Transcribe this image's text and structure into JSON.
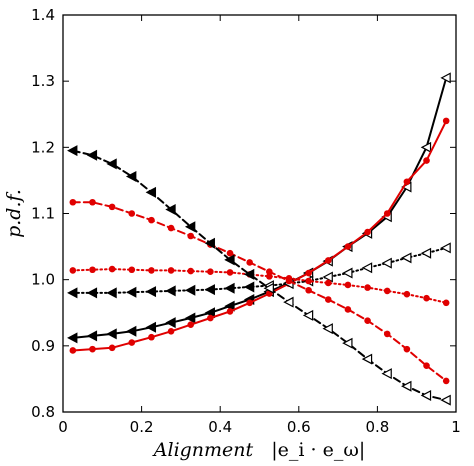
{
  "chart_data": {
    "type": "line",
    "title": "",
    "xlabel": "Alignment",
    "xlabel_formula": "|e_i · e_ω|",
    "ylabel": "p.d.f.",
    "xlim": [
      0,
      1
    ],
    "ylim": [
      0.8,
      1.4
    ],
    "xticks": [
      0,
      0.2,
      0.4,
      0.6,
      0.8,
      1
    ],
    "xtick_labels": [
      "0",
      "0.2",
      "0.4",
      "0.6",
      "0.8",
      "1"
    ],
    "yticks": [
      0.8,
      0.9,
      1.0,
      1.1,
      1.2,
      1.3,
      1.4
    ],
    "ytick_labels": [
      "0.8",
      "0.9",
      "1.0",
      "1.1",
      "1.2",
      "1.3",
      "1.4"
    ],
    "grid": false,
    "legend": "none",
    "series": [
      {
        "color": "#000000",
        "line": "solid",
        "marker": "triangle-left",
        "filled": true,
        "x": [
          0.025,
          0.075,
          0.125,
          0.175,
          0.225,
          0.275,
          0.325,
          0.375,
          0.425,
          0.475,
          0.525,
          0.575,
          0.625,
          0.675,
          0.725,
          0.775,
          0.825,
          0.875,
          0.925,
          0.975
        ],
        "y": [
          0.912,
          0.915,
          0.918,
          0.922,
          0.928,
          0.935,
          0.942,
          0.95,
          0.96,
          0.97,
          0.982,
          0.995,
          1.01,
          1.028,
          1.05,
          1.07,
          1.095,
          1.14,
          1.2,
          1.305
        ]
      },
      {
        "color": "#e00000",
        "line": "solid",
        "marker": "circle",
        "filled": true,
        "x": [
          0.025,
          0.075,
          0.125,
          0.175,
          0.225,
          0.275,
          0.325,
          0.375,
          0.425,
          0.475,
          0.525,
          0.575,
          0.625,
          0.675,
          0.725,
          0.775,
          0.825,
          0.875,
          0.925,
          0.975
        ],
        "y": [
          0.893,
          0.895,
          0.897,
          0.905,
          0.913,
          0.922,
          0.932,
          0.942,
          0.952,
          0.965,
          0.979,
          0.994,
          1.01,
          1.029,
          1.05,
          1.072,
          1.1,
          1.148,
          1.18,
          1.24
        ]
      },
      {
        "color": "#000000",
        "line": "dotted",
        "marker": "triangle-left",
        "filled": true,
        "x": [
          0.025,
          0.075,
          0.125,
          0.175,
          0.225,
          0.275,
          0.325,
          0.375,
          0.425,
          0.475,
          0.525,
          0.575,
          0.625,
          0.675,
          0.725,
          0.775,
          0.825,
          0.875,
          0.925,
          0.975
        ],
        "y": [
          0.98,
          0.98,
          0.98,
          0.981,
          0.982,
          0.983,
          0.984,
          0.985,
          0.987,
          0.989,
          0.991,
          0.994,
          0.998,
          1.004,
          1.01,
          1.018,
          1.025,
          1.033,
          1.04,
          1.048
        ]
      },
      {
        "color": "#e00000",
        "line": "dotted",
        "marker": "circle",
        "filled": true,
        "x": [
          0.025,
          0.075,
          0.125,
          0.175,
          0.225,
          0.275,
          0.325,
          0.375,
          0.425,
          0.475,
          0.525,
          0.575,
          0.625,
          0.675,
          0.725,
          0.775,
          0.825,
          0.875,
          0.925,
          0.975
        ],
        "y": [
          1.014,
          1.015,
          1.016,
          1.015,
          1.014,
          1.014,
          1.013,
          1.012,
          1.011,
          1.008,
          1.005,
          1.002,
          0.998,
          0.995,
          0.992,
          0.988,
          0.983,
          0.978,
          0.972,
          0.965
        ]
      },
      {
        "color": "#e00000",
        "line": "dashed",
        "marker": "circle",
        "filled": true,
        "x": [
          0.025,
          0.075,
          0.125,
          0.175,
          0.225,
          0.275,
          0.325,
          0.375,
          0.425,
          0.475,
          0.525,
          0.575,
          0.625,
          0.675,
          0.725,
          0.775,
          0.825,
          0.875,
          0.925,
          0.975
        ],
        "y": [
          1.117,
          1.117,
          1.11,
          1.1,
          1.09,
          1.078,
          1.066,
          1.053,
          1.04,
          1.026,
          1.012,
          0.998,
          0.984,
          0.97,
          0.955,
          0.938,
          0.918,
          0.895,
          0.87,
          0.847
        ]
      },
      {
        "color": "#000000",
        "line": "dashed",
        "marker": "triangle-left",
        "filled": true,
        "x": [
          0.025,
          0.075,
          0.125,
          0.175,
          0.225,
          0.275,
          0.325,
          0.375,
          0.425,
          0.475,
          0.525,
          0.575,
          0.625,
          0.675,
          0.725,
          0.775,
          0.825,
          0.875,
          0.925,
          0.975
        ],
        "y": [
          1.195,
          1.188,
          1.175,
          1.156,
          1.132,
          1.106,
          1.08,
          1.055,
          1.03,
          1.008,
          0.987,
          0.966,
          0.946,
          0.926,
          0.904,
          0.88,
          0.858,
          0.839,
          0.825,
          0.818
        ]
      }
    ]
  }
}
